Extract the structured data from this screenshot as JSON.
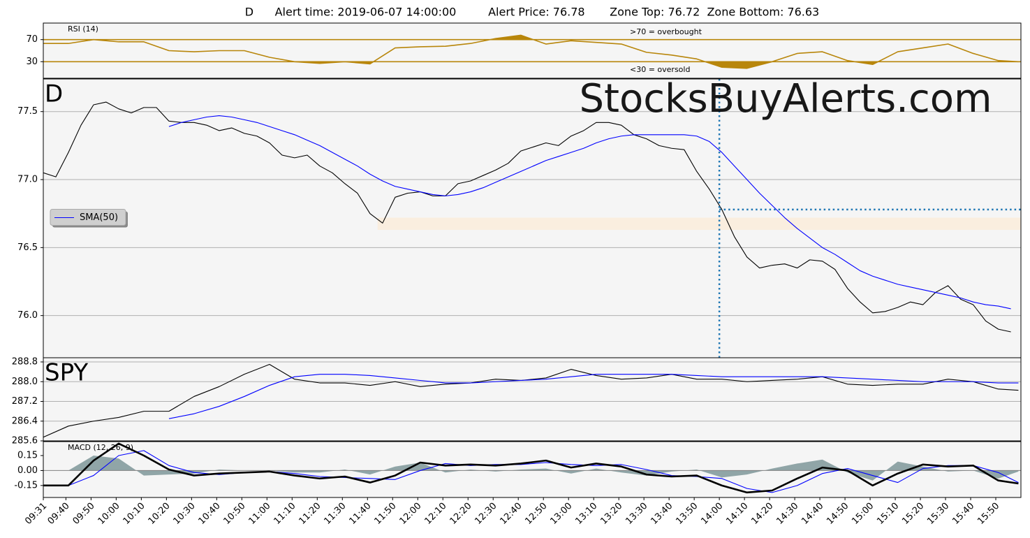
{
  "title": "D      Alert time: 2019-06-07 14:00:00         Alert Price: 76.78       Zone Top: 76.72  Zone Bottom: 76.63",
  "watermark": "StocksBuyAlerts.com",
  "chart_data": [
    {
      "type": "line",
      "label": "RSI (14)",
      "label_style": "small",
      "annotations": [
        ">70 = overbought",
        "<30 = oversold"
      ],
      "xlim": [
        571,
        960
      ],
      "ylim": [
        0,
        100
      ],
      "yticks": [
        30,
        70
      ],
      "grid": true,
      "grid_color": "#b8860b",
      "fill_beyond_ticks": true,
      "x": [
        571,
        581,
        591,
        601,
        611,
        621,
        631,
        641,
        651,
        661,
        671,
        681,
        691,
        701,
        711,
        721,
        731,
        741,
        751,
        761,
        771,
        781,
        791,
        801,
        811,
        821,
        831,
        841,
        851,
        861,
        871,
        881,
        891,
        901,
        911,
        921,
        931,
        941,
        951,
        959
      ],
      "series": [
        {
          "color": "#b8860b",
          "values": [
            63,
            63,
            70,
            66,
            66,
            50,
            48,
            50,
            50,
            38,
            30,
            27,
            30,
            26,
            55,
            57,
            58,
            63,
            72,
            78,
            62,
            68,
            65,
            62,
            47,
            42,
            35,
            20,
            18,
            30,
            45,
            48,
            32,
            25,
            48,
            55,
            62,
            45,
            32,
            30
          ]
        }
      ]
    },
    {
      "type": "line",
      "label": "D",
      "label_style": "large",
      "xlim": [
        571,
        960
      ],
      "ylim": [
        75.69,
        77.74
      ],
      "yticks": [
        {
          "value": 76,
          "label": "76.0"
        },
        76.5,
        {
          "value": 77,
          "label": "77.0"
        },
        77.5
      ],
      "grid": true,
      "grid_color": "#b0b0b0",
      "legend": "center left",
      "alert": {
        "time": 840,
        "price": 76.78,
        "zone_top": 76.72,
        "zone_bottom": 76.63,
        "zone_start": 704
      },
      "x": [
        571,
        576,
        581,
        586,
        591,
        596,
        601,
        606,
        611,
        616,
        621,
        626,
        631,
        636,
        641,
        646,
        651,
        656,
        661,
        666,
        671,
        676,
        681,
        686,
        691,
        696,
        701,
        706,
        711,
        716,
        721,
        726,
        731,
        736,
        741,
        746,
        751,
        756,
        761,
        766,
        771,
        776,
        781,
        786,
        791,
        796,
        801,
        806,
        811,
        816,
        821,
        826,
        831,
        836,
        841,
        846,
        851,
        856,
        861,
        866,
        871,
        876,
        881,
        886,
        891,
        896,
        901,
        906,
        911,
        916,
        921,
        926,
        931,
        936,
        941,
        946,
        951,
        956
      ],
      "series": [
        {
          "color": "#000000",
          "values": [
            77.05,
            77.02,
            77.2,
            77.4,
            77.55,
            77.57,
            77.52,
            77.49,
            77.53,
            77.53,
            77.43,
            77.42,
            77.42,
            77.4,
            77.36,
            77.38,
            77.34,
            77.32,
            77.27,
            77.18,
            77.16,
            77.18,
            77.1,
            77.05,
            76.97,
            76.9,
            76.75,
            76.68,
            76.87,
            76.9,
            76.91,
            76.88,
            76.88,
            76.97,
            76.99,
            77.03,
            77.07,
            77.12,
            77.21,
            77.24,
            77.27,
            77.25,
            77.32,
            77.36,
            77.42,
            77.42,
            77.4,
            77.33,
            77.3,
            77.25,
            77.23,
            77.22,
            77.06,
            76.93,
            76.78,
            76.58,
            76.43,
            76.35,
            76.37,
            76.38,
            76.35,
            76.41,
            76.4,
            76.34,
            76.2,
            76.1,
            76.02,
            76.03,
            76.06,
            76.1,
            76.08,
            76.17,
            76.22,
            76.12,
            76.08,
            75.96,
            75.9,
            75.88
          ]
        },
        {
          "name": "SMA(50)",
          "color": "#0000ff",
          "values": [
            null,
            null,
            null,
            null,
            null,
            null,
            null,
            null,
            null,
            null,
            77.39,
            77.42,
            77.44,
            77.46,
            77.47,
            77.46,
            77.44,
            77.42,
            77.39,
            77.36,
            77.33,
            77.29,
            77.25,
            77.2,
            77.15,
            77.1,
            77.04,
            76.99,
            76.95,
            76.93,
            76.91,
            76.89,
            76.88,
            76.89,
            76.91,
            76.94,
            76.98,
            77.02,
            77.06,
            77.1,
            77.14,
            77.17,
            77.2,
            77.23,
            77.27,
            77.3,
            77.32,
            77.33,
            77.33,
            77.33,
            77.33,
            77.33,
            77.32,
            77.28,
            77.2,
            77.1,
            77.0,
            76.9,
            76.81,
            76.72,
            76.64,
            76.57,
            76.5,
            76.45,
            76.39,
            76.33,
            76.29,
            76.26,
            76.23,
            76.21,
            76.19,
            76.17,
            76.15,
            76.13,
            76.1,
            76.08,
            76.07,
            76.05
          ]
        }
      ]
    },
    {
      "type": "line",
      "label": "SPY",
      "label_style": "large",
      "xlim": [
        571,
        960
      ],
      "ylim": [
        285.6,
        288.97
      ],
      "yticks": [
        285.6,
        286.4,
        287.2,
        {
          "value": 288,
          "label": "288.0"
        },
        288.8
      ],
      "grid": true,
      "grid_color": "#b0b0b0",
      "x": [
        571,
        581,
        591,
        601,
        611,
        621,
        631,
        641,
        651,
        661,
        671,
        681,
        691,
        701,
        711,
        721,
        731,
        741,
        751,
        761,
        771,
        781,
        791,
        801,
        811,
        821,
        831,
        841,
        851,
        861,
        871,
        881,
        891,
        901,
        911,
        921,
        931,
        941,
        951,
        959
      ],
      "series": [
        {
          "color": "#000000",
          "values": [
            285.75,
            286.2,
            286.4,
            286.55,
            286.8,
            286.8,
            287.4,
            287.8,
            288.3,
            288.7,
            288.1,
            287.95,
            287.95,
            287.85,
            288.0,
            287.8,
            287.9,
            287.95,
            288.1,
            288.05,
            288.15,
            288.5,
            288.25,
            288.1,
            288.15,
            288.3,
            288.1,
            288.1,
            288.0,
            288.05,
            288.1,
            288.2,
            287.9,
            287.85,
            287.9,
            287.9,
            288.1,
            288.0,
            287.7,
            287.65
          ]
        },
        {
          "color": "#0000ff",
          "values": [
            null,
            null,
            null,
            null,
            null,
            286.5,
            286.7,
            287.0,
            287.4,
            287.85,
            288.2,
            288.3,
            288.3,
            288.25,
            288.15,
            288.05,
            287.95,
            287.95,
            288.0,
            288.05,
            288.1,
            288.2,
            288.3,
            288.3,
            288.3,
            288.3,
            288.25,
            288.2,
            288.2,
            288.2,
            288.2,
            288.2,
            288.15,
            288.1,
            288.05,
            288.0,
            288.0,
            288.0,
            287.95,
            287.95
          ]
        }
      ]
    },
    {
      "type": "line",
      "label": "MACD (12, 26, 9)",
      "label_style": "small",
      "xlim": [
        571,
        960
      ],
      "ylim": [
        -0.27,
        0.29
      ],
      "yticks": [
        -0.15,
        {
          "value": 0,
          "label": "0.00"
        },
        0.15
      ],
      "grid": false,
      "xticks": [
        {
          "value": 571,
          "label": "09:31"
        },
        {
          "value": 580,
          "label": "09:40"
        },
        {
          "value": 590,
          "label": "09:50"
        },
        {
          "value": 600,
          "label": "10:00"
        },
        {
          "value": 610,
          "label": "10:10"
        },
        {
          "value": 620,
          "label": "10:20"
        },
        {
          "value": 630,
          "label": "10:30"
        },
        {
          "value": 640,
          "label": "10:40"
        },
        {
          "value": 650,
          "label": "10:50"
        },
        {
          "value": 660,
          "label": "11:00"
        },
        {
          "value": 670,
          "label": "11:10"
        },
        {
          "value": 680,
          "label": "11:20"
        },
        {
          "value": 690,
          "label": "11:30"
        },
        {
          "value": 700,
          "label": "11:40"
        },
        {
          "value": 710,
          "label": "11:50"
        },
        {
          "value": 720,
          "label": "12:00"
        },
        {
          "value": 730,
          "label": "12:10"
        },
        {
          "value": 740,
          "label": "12:20"
        },
        {
          "value": 750,
          "label": "12:30"
        },
        {
          "value": 760,
          "label": "12:40"
        },
        {
          "value": 770,
          "label": "12:50"
        },
        {
          "value": 780,
          "label": "13:00"
        },
        {
          "value": 790,
          "label": "13:10"
        },
        {
          "value": 800,
          "label": "13:20"
        },
        {
          "value": 810,
          "label": "13:30"
        },
        {
          "value": 820,
          "label": "13:40"
        },
        {
          "value": 830,
          "label": "13:50"
        },
        {
          "value": 840,
          "label": "14:00"
        },
        {
          "value": 850,
          "label": "14:10"
        },
        {
          "value": 860,
          "label": "14:20"
        },
        {
          "value": 870,
          "label": "14:30"
        },
        {
          "value": 880,
          "label": "14:40"
        },
        {
          "value": 890,
          "label": "14:50"
        },
        {
          "value": 900,
          "label": "15:00"
        },
        {
          "value": 910,
          "label": "15:10"
        },
        {
          "value": 920,
          "label": "15:20"
        },
        {
          "value": 930,
          "label": "15:30"
        },
        {
          "value": 940,
          "label": "15:40"
        },
        {
          "value": 950,
          "label": "15:50"
        }
      ],
      "x": [
        571,
        581,
        591,
        601,
        611,
        621,
        631,
        641,
        651,
        661,
        671,
        681,
        691,
        701,
        711,
        721,
        731,
        741,
        751,
        761,
        771,
        781,
        791,
        801,
        811,
        821,
        831,
        841,
        851,
        861,
        871,
        881,
        891,
        901,
        911,
        921,
        931,
        941,
        951,
        959
      ],
      "series": [
        {
          "kind": "area",
          "color": "#6e8a8c",
          "values": [
            0,
            0,
            0.15,
            0.12,
            -0.05,
            -0.04,
            -0.03,
            0.01,
            0,
            0,
            -0.02,
            -0.02,
            0.01,
            -0.04,
            0.04,
            0.08,
            -0.02,
            0.01,
            -0.01,
            0.01,
            0.02,
            -0.03,
            0.02,
            -0.02,
            -0.05,
            -0.01,
            0.01,
            -0.07,
            -0.04,
            0.02,
            0.07,
            0.11,
            -0.02,
            -0.1,
            0.09,
            0.04,
            -0.01,
            0,
            -0.08,
            -0.01
          ]
        },
        {
          "color": "#0000ff",
          "values": [
            -0.15,
            -0.15,
            -0.05,
            0.15,
            0.2,
            0.05,
            -0.02,
            -0.04,
            -0.02,
            -0.01,
            -0.03,
            -0.06,
            -0.07,
            -0.08,
            -0.09,
            0.0,
            0.07,
            0.05,
            0.06,
            0.06,
            0.08,
            0.06,
            0.05,
            0.06,
            0.01,
            -0.05,
            -0.06,
            -0.08,
            -0.18,
            -0.22,
            -0.15,
            -0.03,
            0.02,
            -0.05,
            -0.12,
            0.02,
            0.05,
            0.05,
            -0.02,
            -0.12
          ]
        },
        {
          "color": "#000000",
          "linestyle": "thick",
          "values": [
            -0.15,
            -0.15,
            0.1,
            0.27,
            0.15,
            0.01,
            -0.05,
            -0.03,
            -0.02,
            -0.01,
            -0.05,
            -0.08,
            -0.06,
            -0.12,
            -0.05,
            0.08,
            0.05,
            0.06,
            0.05,
            0.07,
            0.1,
            0.03,
            0.07,
            0.04,
            -0.04,
            -0.06,
            -0.05,
            -0.15,
            -0.22,
            -0.2,
            -0.08,
            0.03,
            0.0,
            -0.15,
            -0.03,
            0.06,
            0.04,
            0.05,
            -0.1,
            -0.13
          ]
        }
      ]
    }
  ]
}
